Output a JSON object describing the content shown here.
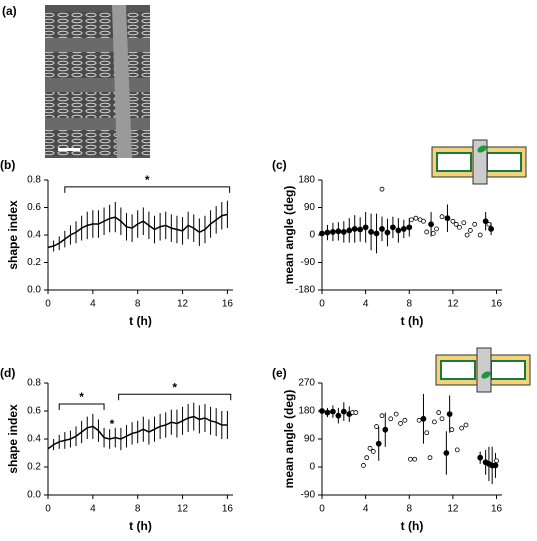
{
  "figure": {
    "panel_a": "(a)"
  },
  "chart_data": [
    {
      "type": "line",
      "panel": "(b)",
      "xlabel": "t (h)",
      "ylabel": "shape index",
      "color": "#000000",
      "xlim": [
        0,
        16.5
      ],
      "xticks": [
        0,
        4,
        8,
        12,
        16
      ],
      "ylim": [
        0,
        0.8
      ],
      "yticks": [
        {
          "value": 0,
          "label": "0.0"
        },
        {
          "value": 0.2,
          "label": "0.2"
        },
        {
          "value": 0.4,
          "label": "0.4"
        },
        {
          "value": 0.6,
          "label": "0.6"
        },
        {
          "value": 0.8,
          "label": "0.8"
        }
      ],
      "x": [
        0,
        0.5,
        1,
        1.5,
        2,
        2.5,
        3,
        3.5,
        4,
        4.5,
        5,
        5.5,
        6,
        6.5,
        7,
        7.5,
        8,
        8.5,
        9,
        9.5,
        10,
        10.5,
        11,
        11.5,
        12,
        12.5,
        13,
        13.5,
        14,
        14.5,
        15,
        15.5,
        16
      ],
      "series": [
        {
          "values": [
            0.31,
            0.32,
            0.34,
            0.37,
            0.4,
            0.42,
            0.45,
            0.47,
            0.48,
            0.48,
            0.5,
            0.52,
            0.53,
            0.5,
            0.46,
            0.45,
            0.48,
            0.5,
            0.47,
            0.44,
            0.46,
            0.47,
            0.45,
            0.44,
            0.43,
            0.47,
            0.45,
            0.42,
            0.44,
            0.48,
            0.51,
            0.54,
            0.55
          ],
          "errors": [
            0.03,
            0.04,
            0.05,
            0.06,
            0.07,
            0.08,
            0.09,
            0.1,
            0.1,
            0.1,
            0.1,
            0.1,
            0.11,
            0.1,
            0.1,
            0.1,
            0.1,
            0.1,
            0.1,
            0.1,
            0.1,
            0.1,
            0.1,
            0.1,
            0.1,
            0.1,
            0.1,
            0.1,
            0.1,
            0.1,
            0.1,
            0.1,
            0.1
          ]
        }
      ],
      "annotations": [
        {
          "label": "*",
          "x": [
            1.5,
            16.2
          ],
          "y": 0.75
        }
      ]
    },
    {
      "type": "scatter",
      "panel": "(c)",
      "xlabel": "t (h)",
      "ylabel": "mean angle (deg)",
      "color": "#000000",
      "xlim": [
        0,
        16.5
      ],
      "xticks": [
        0,
        4,
        8,
        12,
        16
      ],
      "ylim": [
        -180,
        180
      ],
      "yticks": [
        -180,
        -90,
        0,
        90,
        180
      ],
      "series": [
        {
          "marker": "filled",
          "x": [
            0,
            0.5,
            1,
            1.5,
            2,
            2.5,
            3,
            3.5,
            4,
            4.5,
            5,
            5.5,
            6,
            6.5,
            7,
            7.5,
            8,
            10,
            11.5,
            15,
            15.5
          ],
          "values": [
            5,
            8,
            10,
            12,
            10,
            15,
            20,
            18,
            25,
            10,
            5,
            20,
            8,
            25,
            15,
            20,
            25,
            35,
            55,
            45,
            20
          ],
          "errors": [
            20,
            25,
            30,
            30,
            35,
            40,
            45,
            40,
            50,
            60,
            65,
            40,
            45,
            35,
            40,
            30,
            30,
            40,
            45,
            30,
            20
          ]
        },
        {
          "marker": "open",
          "x": [
            5.5,
            8.2,
            8.6,
            9,
            9.3,
            9.6,
            10.2,
            10.5,
            11,
            12,
            12.3,
            12.6,
            13,
            13.3,
            13.6,
            14,
            14.5,
            15.3
          ],
          "values": [
            150,
            50,
            55,
            50,
            45,
            10,
            5,
            20,
            60,
            45,
            35,
            25,
            40,
            0,
            15,
            35,
            0,
            35
          ]
        }
      ]
    },
    {
      "type": "line",
      "panel": "(d)",
      "xlabel": "t (h)",
      "ylabel": "shape index",
      "color": "#000000",
      "xlim": [
        0,
        16.5
      ],
      "xticks": [
        0,
        4,
        8,
        12,
        16
      ],
      "ylim": [
        0,
        0.8
      ],
      "yticks": [
        {
          "value": 0,
          "label": "0.0"
        },
        {
          "value": 0.2,
          "label": "0.2"
        },
        {
          "value": 0.4,
          "label": "0.4"
        },
        {
          "value": 0.6,
          "label": "0.6"
        },
        {
          "value": 0.8,
          "label": "0.8"
        }
      ],
      "x": [
        0,
        0.5,
        1,
        1.5,
        2,
        2.5,
        3,
        3.5,
        4,
        4.5,
        5,
        5.5,
        6,
        6.5,
        7,
        7.5,
        8,
        8.5,
        9,
        9.5,
        10,
        10.5,
        11,
        11.5,
        12,
        12.5,
        13,
        13.5,
        14,
        14.5,
        15,
        15.5,
        16
      ],
      "series": [
        {
          "values": [
            0.33,
            0.36,
            0.38,
            0.39,
            0.4,
            0.42,
            0.45,
            0.48,
            0.49,
            0.46,
            0.41,
            0.4,
            0.41,
            0.4,
            0.42,
            0.44,
            0.45,
            0.47,
            0.45,
            0.47,
            0.49,
            0.5,
            0.52,
            0.51,
            0.53,
            0.55,
            0.56,
            0.54,
            0.55,
            0.53,
            0.52,
            0.5,
            0.5
          ],
          "errors": [
            0.03,
            0.04,
            0.05,
            0.06,
            0.06,
            0.07,
            0.08,
            0.08,
            0.09,
            0.08,
            0.07,
            0.07,
            0.07,
            0.08,
            0.08,
            0.08,
            0.08,
            0.09,
            0.09,
            0.09,
            0.09,
            0.09,
            0.09,
            0.1,
            0.1,
            0.1,
            0.1,
            0.1,
            0.1,
            0.1,
            0.1,
            0.1,
            0.1
          ]
        }
      ],
      "annotations": [
        {
          "label": "*",
          "x": [
            1,
            5
          ],
          "y": 0.65
        },
        {
          "label": "*",
          "x": [
            6.3,
            16.3
          ],
          "y": 0.72
        },
        {
          "label": "*",
          "x": [
            5.7
          ],
          "y": 0.5
        }
      ]
    },
    {
      "type": "scatter",
      "panel": "(e)",
      "xlabel": "t (h)",
      "ylabel": "mean angle (deg)",
      "color": "#000000",
      "xlim": [
        0,
        16.5
      ],
      "xticks": [
        0,
        4,
        8,
        12,
        16
      ],
      "ylim": [
        -90,
        270
      ],
      "yticks": [
        -90,
        0,
        90,
        180,
        270
      ],
      "series": [
        {
          "marker": "filled",
          "x": [
            0,
            0.5,
            1,
            1.5,
            2,
            2.5,
            5.2,
            5.8,
            9.3,
            11.4,
            11.7,
            14.5,
            15,
            15.3,
            15.6,
            15.9
          ],
          "values": [
            180,
            175,
            178,
            165,
            178,
            170,
            75,
            120,
            155,
            45,
            170,
            30,
            15,
            10,
            5,
            5
          ],
          "errors": [
            15,
            15,
            20,
            25,
            30,
            25,
            55,
            55,
            80,
            70,
            60,
            20,
            40,
            55,
            60,
            40
          ]
        },
        {
          "marker": "open",
          "x": [
            2.8,
            3.1,
            3.8,
            4.1,
            4.4,
            4.7,
            5,
            5.5,
            6.3,
            6.8,
            7.2,
            7.6,
            8.1,
            8.5,
            8.9,
            9.6,
            9.9,
            10.3,
            10.7,
            11,
            11.9,
            12.4,
            12.8,
            13.2,
            16
          ],
          "values": [
            175,
            175,
            5,
            30,
            60,
            50,
            130,
            165,
            155,
            170,
            140,
            150,
            25,
            25,
            150,
            110,
            30,
            145,
            175,
            155,
            120,
            55,
            125,
            135,
            20
          ]
        }
      ]
    }
  ]
}
